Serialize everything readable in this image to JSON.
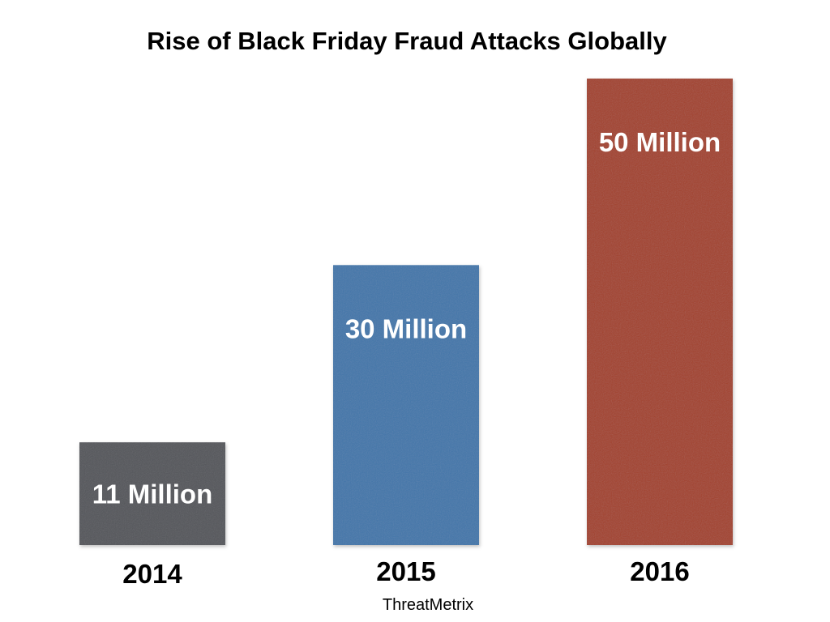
{
  "chart_data": {
    "type": "bar",
    "title": "Rise of Black Friday Fraud Attacks Globally",
    "categories": [
      "2014",
      "2015",
      "2016"
    ],
    "values": [
      11,
      30,
      50
    ],
    "value_labels": [
      "11 Million",
      "30 Million",
      "50 Million"
    ],
    "colors": [
      "#54575c",
      "#4277aa",
      "#a3432f"
    ],
    "source": "ThreatMetrix",
    "ylim": [
      0,
      50
    ],
    "grid": false,
    "legend": "none"
  }
}
